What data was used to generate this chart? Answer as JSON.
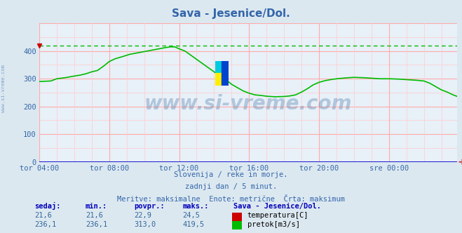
{
  "title": "Sava - Jesenice/Dol.",
  "bg_color": "#dce8f0",
  "plot_bg_color": "#e8f0f8",
  "grid_color_major": "#ffaaaa",
  "grid_color_minor": "#ffcccc",
  "x_labels": [
    "tor 04:00",
    "tor 08:00",
    "tor 12:00",
    "tor 16:00",
    "tor 20:00",
    "sre 00:00"
  ],
  "x_ticks": [
    0,
    48,
    96,
    144,
    192,
    240
  ],
  "x_max": 287,
  "y_min": 0,
  "y_max": 500,
  "y_ticks": [
    0,
    100,
    200,
    300,
    400
  ],
  "max_line_value": 419.5,
  "flow_color": "#00bb00",
  "temp_color": "#cc0000",
  "subtitle_lines": [
    "Slovenija / reke in morje.",
    "zadnji dan / 5 minut.",
    "Meritve: maksimalne  Enote: metrične  Črta: maksimum"
  ],
  "table_headers": [
    "sedaj:",
    "min.:",
    "povpr.:",
    "maks.:"
  ],
  "station_name": "Sava - Jesenice/Dol.",
  "rows": [
    {
      "values": [
        "21,6",
        "21,6",
        "22,9",
        "24,5"
      ],
      "label": "temperatura[C]",
      "color": "#cc0000"
    },
    {
      "values": [
        "236,1",
        "236,1",
        "313,0",
        "419,5"
      ],
      "label": "pretok[m3/s]",
      "color": "#00bb00"
    }
  ],
  "watermark_text": "www.si-vreme.com",
  "watermark_color": "#4a7aaa",
  "watermark_alpha": 0.35,
  "axis_label_color": "#3366aa",
  "title_color": "#3366aa",
  "subtitle_color": "#3366aa",
  "left_label": "www.si-vreme.com"
}
